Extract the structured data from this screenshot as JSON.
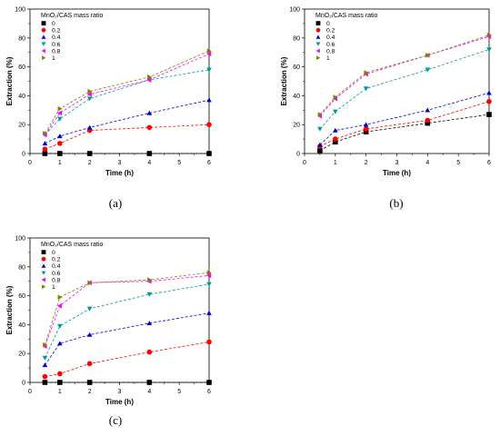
{
  "chart_data": [
    {
      "panel": "(a)",
      "type": "line",
      "legend_title": "MnO₂/CAS mass ratio",
      "legend_position": "top-left",
      "xlabel": "Time (h)",
      "ylabel": "Extraction (%)",
      "xlim": [
        0,
        6
      ],
      "ylim": [
        0,
        100
      ],
      "xticks": [
        "0",
        "1",
        "2",
        "3",
        "4",
        "5",
        "6"
      ],
      "yticks": [
        "0",
        "20",
        "40",
        "60",
        "80",
        "100"
      ],
      "grid": false,
      "x": [
        0.5,
        1,
        2,
        4,
        6
      ],
      "series": [
        {
          "name": "0",
          "values": [
            0,
            0,
            0,
            0,
            0
          ]
        },
        {
          "name": "0.2",
          "values": [
            3,
            7,
            16,
            18,
            20
          ]
        },
        {
          "name": "0.4",
          "values": [
            7,
            12,
            18,
            28,
            37
          ]
        },
        {
          "name": "0.6",
          "values": [
            13,
            24,
            38,
            51,
            58
          ]
        },
        {
          "name": "0.8",
          "values": [
            13,
            28,
            41,
            51,
            69
          ]
        },
        {
          "name": "1",
          "values": [
            14,
            31,
            43,
            53,
            71
          ]
        }
      ]
    },
    {
      "panel": "(b)",
      "type": "line",
      "legend_title": "MnO₂/CAS mass ratio",
      "legend_position": "top-left",
      "xlabel": "Time (h)",
      "ylabel": "Extraction (%)",
      "xlim": [
        0,
        6
      ],
      "ylim": [
        0,
        100
      ],
      "xticks": [
        "0",
        "1",
        "2",
        "3",
        "4",
        "5",
        "6"
      ],
      "yticks": [
        "0",
        "20",
        "40",
        "60",
        "80",
        "100"
      ],
      "grid": false,
      "x": [
        0.5,
        1,
        2,
        4,
        6
      ],
      "series": [
        {
          "name": "0",
          "values": [
            2,
            8,
            15,
            21,
            27
          ]
        },
        {
          "name": "0.2",
          "values": [
            5,
            10,
            17,
            23,
            36
          ]
        },
        {
          "name": "0.4",
          "values": [
            6,
            16,
            20,
            30,
            42
          ]
        },
        {
          "name": "0.6",
          "values": [
            17,
            29,
            45,
            58,
            72
          ]
        },
        {
          "name": "0.8",
          "values": [
            26,
            38,
            55,
            68,
            81
          ]
        },
        {
          "name": "1",
          "values": [
            27,
            39,
            56,
            68,
            82
          ]
        }
      ]
    },
    {
      "panel": "(c)",
      "type": "line",
      "legend_title": "MnO₂/CAS mass ratio",
      "legend_position": "top-left",
      "xlabel": "Time (h)",
      "ylabel": "Extraction (%)",
      "xlim": [
        0,
        6
      ],
      "ylim": [
        0,
        100
      ],
      "xticks": [
        "0",
        "1",
        "2",
        "3",
        "4",
        "5",
        "6"
      ],
      "yticks": [
        "0",
        "20",
        "40",
        "60",
        "80",
        "100"
      ],
      "grid": false,
      "x": [
        0.5,
        1,
        2,
        4,
        6
      ],
      "series": [
        {
          "name": "0",
          "values": [
            0,
            0,
            0,
            0,
            0
          ]
        },
        {
          "name": "0.2",
          "values": [
            4,
            6,
            13,
            21,
            28
          ]
        },
        {
          "name": "0.4",
          "values": [
            12,
            27,
            33,
            41,
            48
          ]
        },
        {
          "name": "0.6",
          "values": [
            17,
            39,
            51,
            61,
            68
          ]
        },
        {
          "name": "0.8",
          "values": [
            25,
            53,
            69,
            70,
            74
          ]
        },
        {
          "name": "1",
          "values": [
            26,
            59,
            69,
            71,
            76
          ]
        }
      ]
    }
  ],
  "series_styles": [
    {
      "color": "#000000",
      "marker": "square"
    },
    {
      "color": "#ff0000",
      "marker": "circle"
    },
    {
      "color": "#0000cc",
      "marker": "triangle-up"
    },
    {
      "color": "#009999",
      "marker": "triangle-down"
    },
    {
      "color": "#ff00ff",
      "marker": "triangle-left"
    },
    {
      "color": "#808000",
      "marker": "triangle-right"
    }
  ]
}
